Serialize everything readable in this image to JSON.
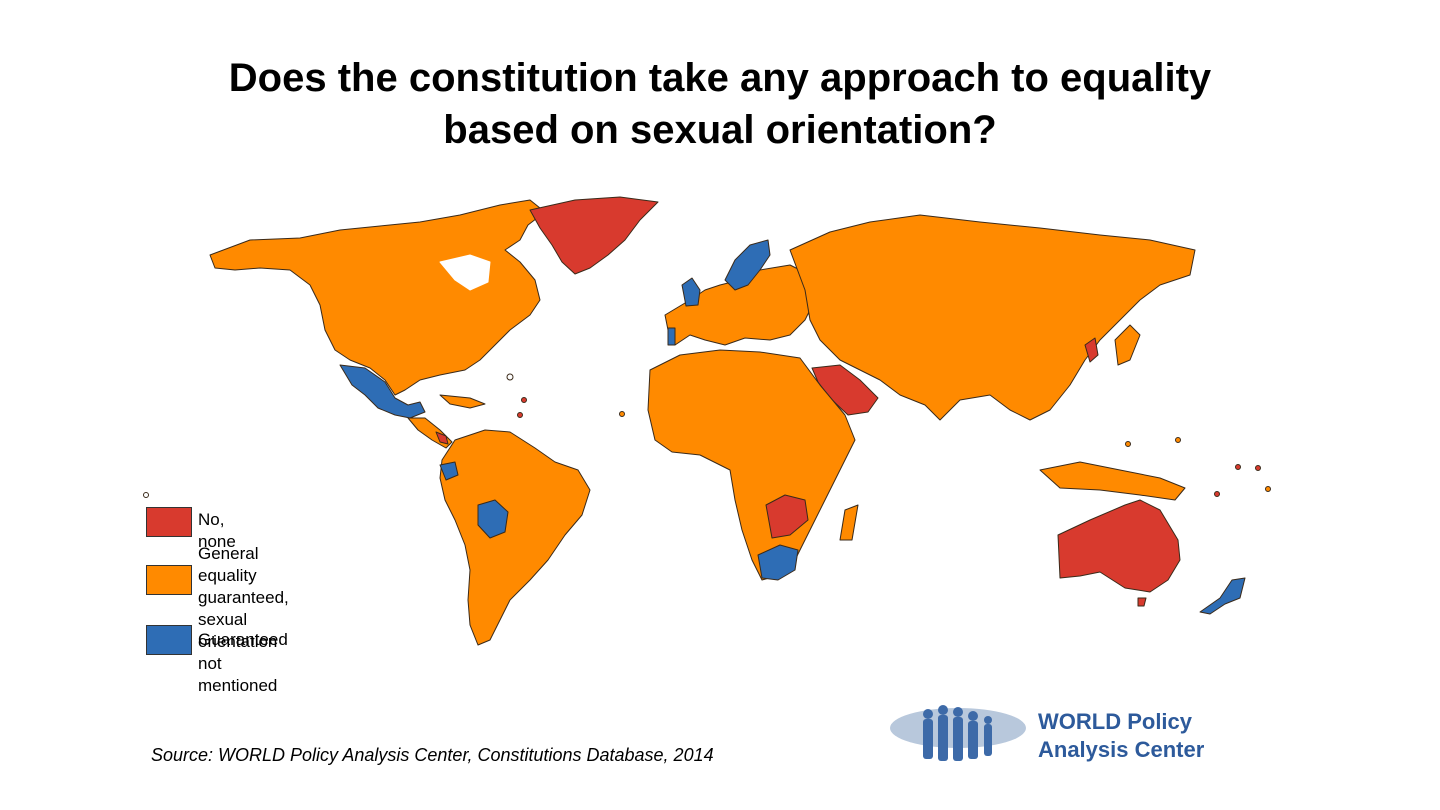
{
  "title": {
    "line1": "Does the constitution take any approach to equality",
    "line2": "based on sexual orientation?"
  },
  "legend": {
    "items": [
      {
        "label": "No, none",
        "color": "#d83a2e"
      },
      {
        "label": "General equality guaranteed,\nsexual orientation\nnot mentioned",
        "color": "#ff8a00"
      },
      {
        "label": "Guaranteed",
        "color": "#2e6db5"
      }
    ]
  },
  "source": "Source: WORLD Policy Analysis Center, Constitutions Database, 2014",
  "logo": {
    "line1": "WORLD Policy",
    "line2": "Analysis Center"
  },
  "colors": {
    "none": "#d83a2e",
    "general": "#ff8a00",
    "guaranteed": "#2e6db5",
    "border": "#3a2a1a",
    "logo_text": "#2d5a9b"
  }
}
